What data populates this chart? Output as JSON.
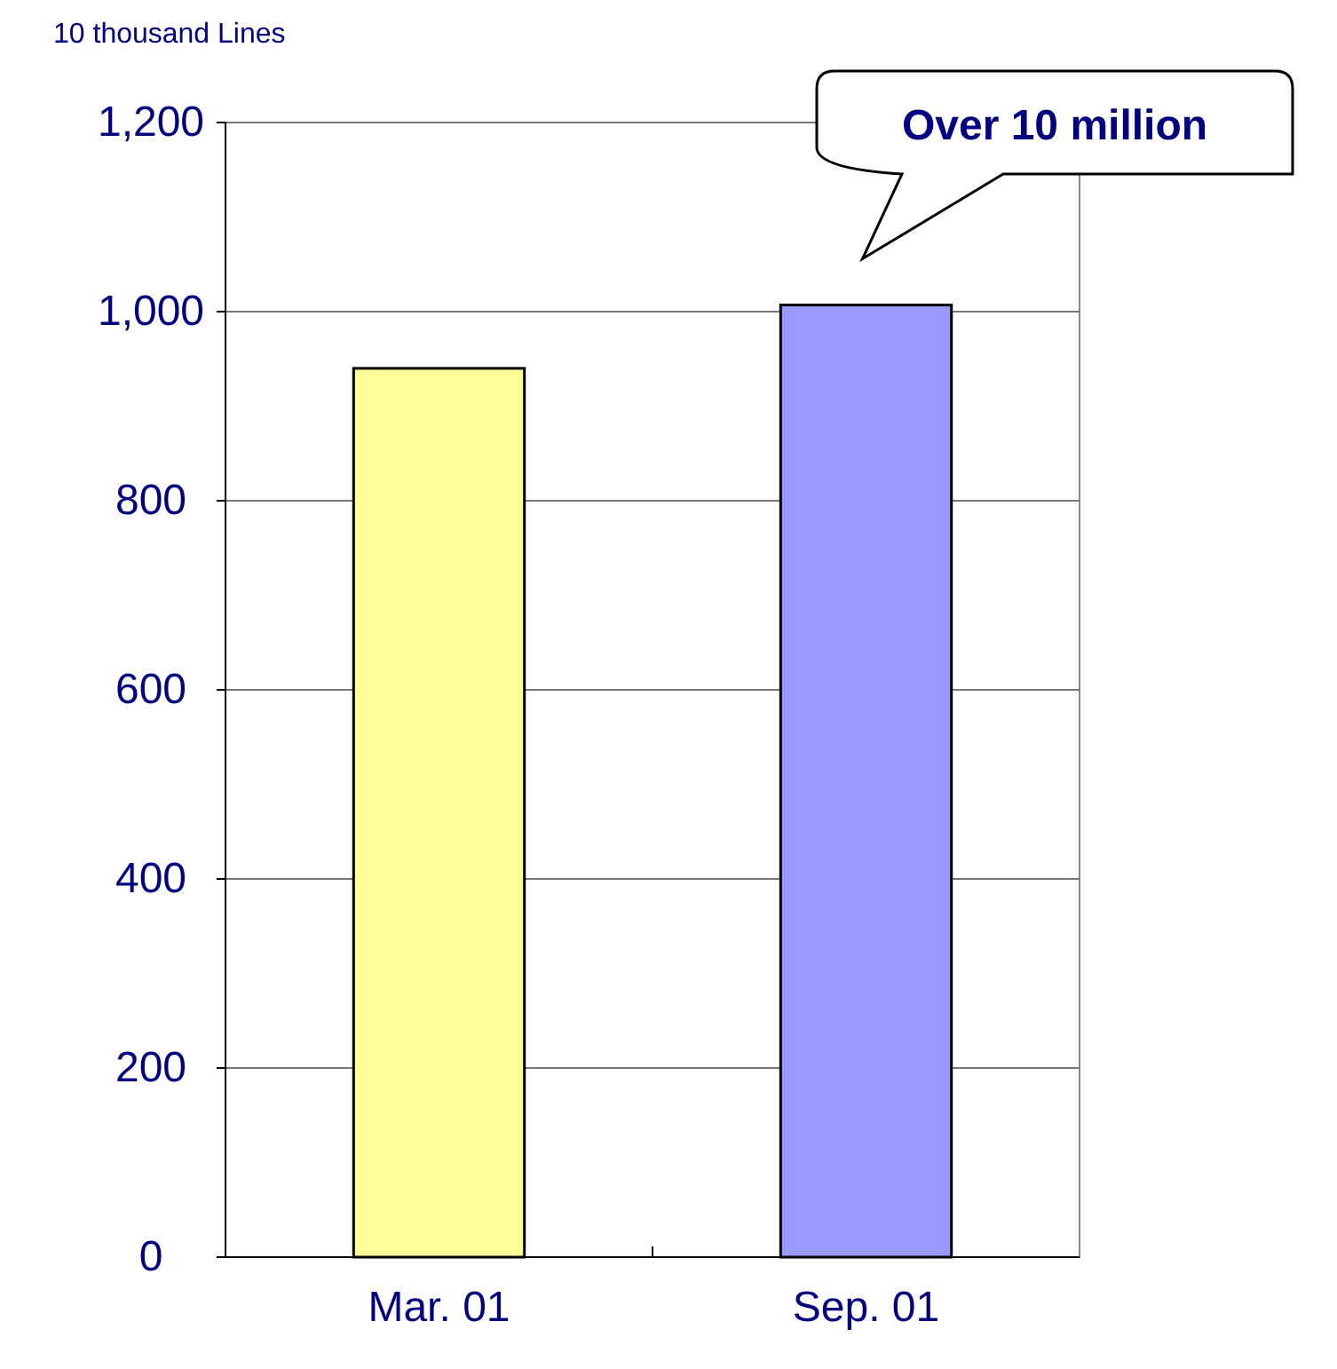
{
  "chart_data": {
    "type": "bar",
    "ylabel": "10 thousand Lines",
    "categories": [
      "Mar. 01",
      "Sep. 01"
    ],
    "values": [
      940,
      1007
    ],
    "colors": [
      "#ffff99",
      "#9999ff"
    ],
    "ylim": [
      0,
      1200
    ],
    "yticks": [
      0,
      200,
      400,
      600,
      800,
      {
        "value": 1000,
        "label": "1,000"
      },
      {
        "value": 1200,
        "label": "1,200"
      }
    ],
    "grid": "y",
    "annotations": [
      "Over 10 million"
    ]
  }
}
